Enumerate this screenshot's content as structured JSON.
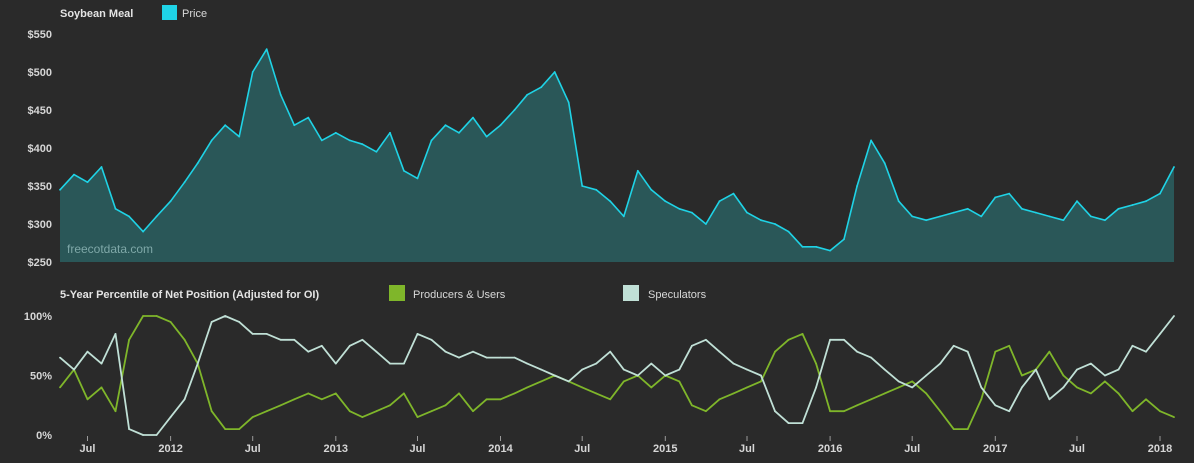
{
  "chart_data": [
    {
      "type": "area",
      "title": "Soybean Meal",
      "watermark": "freecotdata.com",
      "legend": [
        {
          "label": "Price",
          "color": "#1fd3e6"
        }
      ],
      "legend_position": "top-left",
      "ylim": [
        250,
        550
      ],
      "y_ticks": [
        250,
        300,
        350,
        400,
        450,
        500,
        550
      ],
      "y_tick_labels": [
        "$250",
        "$300",
        "$350",
        "$400",
        "$450",
        "$500",
        "$550"
      ],
      "grid": false,
      "colors": {
        "line": "#1fd3e6",
        "fill": "#2a5758"
      },
      "x_start": "2011-05-01",
      "x_end": "2018-02-01",
      "series": [
        {
          "name": "Price",
          "x": [
            "2011-05",
            "2011-06",
            "2011-07",
            "2011-08",
            "2011-09",
            "2011-10",
            "2011-11",
            "2011-12",
            "2012-01",
            "2012-02",
            "2012-03",
            "2012-04",
            "2012-05",
            "2012-06",
            "2012-07",
            "2012-08",
            "2012-09",
            "2012-10",
            "2012-11",
            "2012-12",
            "2013-01",
            "2013-02",
            "2013-03",
            "2013-04",
            "2013-05",
            "2013-06",
            "2013-07",
            "2013-08",
            "2013-09",
            "2013-10",
            "2013-11",
            "2013-12",
            "2014-01",
            "2014-02",
            "2014-03",
            "2014-04",
            "2014-05",
            "2014-06",
            "2014-07",
            "2014-08",
            "2014-09",
            "2014-10",
            "2014-11",
            "2014-12",
            "2015-01",
            "2015-02",
            "2015-03",
            "2015-04",
            "2015-05",
            "2015-06",
            "2015-07",
            "2015-08",
            "2015-09",
            "2015-10",
            "2015-11",
            "2015-12",
            "2016-01",
            "2016-02",
            "2016-03",
            "2016-04",
            "2016-05",
            "2016-06",
            "2016-07",
            "2016-08",
            "2016-09",
            "2016-10",
            "2016-11",
            "2016-12",
            "2017-01",
            "2017-02",
            "2017-03",
            "2017-04",
            "2017-05",
            "2017-06",
            "2017-07",
            "2017-08",
            "2017-09",
            "2017-10",
            "2017-11",
            "2017-12",
            "2018-01",
            "2018-02"
          ],
          "values": [
            345,
            365,
            355,
            375,
            320,
            310,
            290,
            310,
            330,
            355,
            380,
            410,
            430,
            415,
            500,
            530,
            470,
            430,
            440,
            410,
            420,
            410,
            405,
            395,
            420,
            370,
            360,
            410,
            430,
            420,
            440,
            415,
            430,
            450,
            470,
            480,
            500,
            460,
            350,
            345,
            330,
            310,
            370,
            345,
            330,
            320,
            315,
            300,
            330,
            340,
            315,
            305,
            300,
            290,
            270,
            270,
            265,
            280,
            350,
            410,
            380,
            330,
            310,
            305,
            310,
            315,
            320,
            310,
            335,
            340,
            320,
            315,
            310,
            305,
            330,
            310,
            305,
            320,
            325,
            330,
            340,
            375
          ]
        }
      ]
    },
    {
      "type": "line",
      "title": "5-Year Percentile of Net Position (Adjusted for OI)",
      "legend_position": "top",
      "ylim": [
        0,
        100
      ],
      "y_ticks": [
        0,
        50,
        100
      ],
      "y_tick_labels": [
        "0%",
        "50%",
        "100%"
      ],
      "grid": false,
      "x_ticks": [
        "2011-07",
        "2012-01",
        "2012-07",
        "2013-01",
        "2013-07",
        "2014-01",
        "2014-07",
        "2015-01",
        "2015-07",
        "2016-01",
        "2016-07",
        "2017-01",
        "2017-07",
        "2018-01"
      ],
      "x_tick_labels": [
        "Jul",
        "2012",
        "Jul",
        "2013",
        "Jul",
        "2014",
        "Jul",
        "2015",
        "Jul",
        "2016",
        "Jul",
        "2017",
        "Jul",
        "2018"
      ],
      "x_start": "2011-05-01",
      "x_end": "2018-02-01",
      "series": [
        {
          "name": "Producers & Users",
          "color": "#7fb62a",
          "x": [
            "2011-05",
            "2011-06",
            "2011-07",
            "2011-08",
            "2011-09",
            "2011-10",
            "2011-11",
            "2011-12",
            "2012-01",
            "2012-02",
            "2012-03",
            "2012-04",
            "2012-05",
            "2012-06",
            "2012-07",
            "2012-08",
            "2012-09",
            "2012-10",
            "2012-11",
            "2012-12",
            "2013-01",
            "2013-02",
            "2013-03",
            "2013-04",
            "2013-05",
            "2013-06",
            "2013-07",
            "2013-08",
            "2013-09",
            "2013-10",
            "2013-11",
            "2013-12",
            "2014-01",
            "2014-02",
            "2014-03",
            "2014-04",
            "2014-05",
            "2014-06",
            "2014-07",
            "2014-08",
            "2014-09",
            "2014-10",
            "2014-11",
            "2014-12",
            "2015-01",
            "2015-02",
            "2015-03",
            "2015-04",
            "2015-05",
            "2015-06",
            "2015-07",
            "2015-08",
            "2015-09",
            "2015-10",
            "2015-11",
            "2015-12",
            "2016-01",
            "2016-02",
            "2016-03",
            "2016-04",
            "2016-05",
            "2016-06",
            "2016-07",
            "2016-08",
            "2016-09",
            "2016-10",
            "2016-11",
            "2016-12",
            "2017-01",
            "2017-02",
            "2017-03",
            "2017-04",
            "2017-05",
            "2017-06",
            "2017-07",
            "2017-08",
            "2017-09",
            "2017-10",
            "2017-11",
            "2017-12",
            "2018-01",
            "2018-02"
          ],
          "values": [
            40,
            55,
            30,
            40,
            20,
            80,
            100,
            100,
            95,
            80,
            60,
            20,
            5,
            5,
            15,
            20,
            25,
            30,
            35,
            30,
            35,
            20,
            15,
            20,
            25,
            35,
            15,
            20,
            25,
            35,
            20,
            30,
            30,
            35,
            40,
            45,
            50,
            45,
            40,
            35,
            30,
            45,
            50,
            40,
            50,
            45,
            25,
            20,
            30,
            35,
            40,
            45,
            70,
            80,
            85,
            60,
            20,
            20,
            25,
            30,
            35,
            40,
            45,
            35,
            20,
            5,
            5,
            30,
            70,
            75,
            50,
            55,
            70,
            50,
            40,
            35,
            45,
            35,
            20,
            30,
            20,
            15
          ]
        },
        {
          "name": "Speculators",
          "color": "#c0e0d6",
          "x": [
            "2011-05",
            "2011-06",
            "2011-07",
            "2011-08",
            "2011-09",
            "2011-10",
            "2011-11",
            "2011-12",
            "2012-01",
            "2012-02",
            "2012-03",
            "2012-04",
            "2012-05",
            "2012-06",
            "2012-07",
            "2012-08",
            "2012-09",
            "2012-10",
            "2012-11",
            "2012-12",
            "2013-01",
            "2013-02",
            "2013-03",
            "2013-04",
            "2013-05",
            "2013-06",
            "2013-07",
            "2013-08",
            "2013-09",
            "2013-10",
            "2013-11",
            "2013-12",
            "2014-01",
            "2014-02",
            "2014-03",
            "2014-04",
            "2014-05",
            "2014-06",
            "2014-07",
            "2014-08",
            "2014-09",
            "2014-10",
            "2014-11",
            "2014-12",
            "2015-01",
            "2015-02",
            "2015-03",
            "2015-04",
            "2015-05",
            "2015-06",
            "2015-07",
            "2015-08",
            "2015-09",
            "2015-10",
            "2015-11",
            "2015-12",
            "2016-01",
            "2016-02",
            "2016-03",
            "2016-04",
            "2016-05",
            "2016-06",
            "2016-07",
            "2016-08",
            "2016-09",
            "2016-10",
            "2016-11",
            "2016-12",
            "2017-01",
            "2017-02",
            "2017-03",
            "2017-04",
            "2017-05",
            "2017-06",
            "2017-07",
            "2017-08",
            "2017-09",
            "2017-10",
            "2017-11",
            "2017-12",
            "2018-01",
            "2018-02"
          ],
          "values": [
            65,
            55,
            70,
            60,
            85,
            5,
            0,
            0,
            15,
            30,
            60,
            95,
            100,
            95,
            85,
            85,
            80,
            80,
            70,
            75,
            60,
            75,
            80,
            70,
            60,
            60,
            85,
            80,
            70,
            65,
            70,
            65,
            65,
            65,
            60,
            55,
            50,
            45,
            55,
            60,
            70,
            55,
            50,
            60,
            50,
            55,
            75,
            80,
            70,
            60,
            55,
            50,
            20,
            10,
            10,
            40,
            80,
            80,
            70,
            65,
            55,
            45,
            40,
            50,
            60,
            75,
            70,
            40,
            25,
            20,
            40,
            55,
            30,
            40,
            55,
            60,
            50,
            55,
            75,
            70,
            85,
            100
          ]
        }
      ]
    }
  ]
}
